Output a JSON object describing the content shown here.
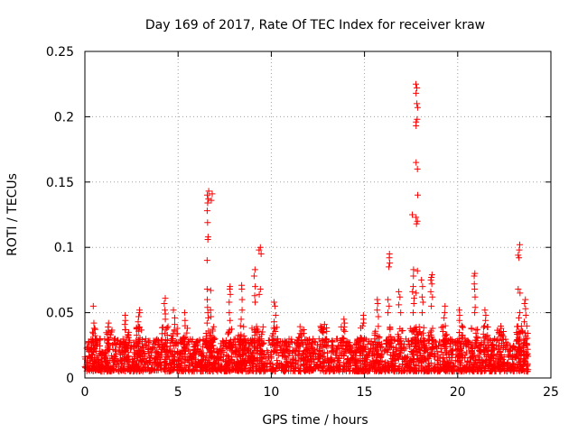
{
  "chart_data": {
    "type": "scatter",
    "title": "Day 169 of 2017, Rate Of TEC Index for receiver kraw",
    "xlabel": "GPS time / hours",
    "ylabel": "ROTI / TECUs",
    "xlim": [
      0,
      25
    ],
    "ylim": [
      0,
      0.25
    ],
    "xticks": [
      0,
      5,
      10,
      15,
      20,
      25
    ],
    "yticks": [
      0,
      0.05,
      0.1,
      0.15,
      0.2,
      0.25
    ],
    "xtick_labels": [
      "0",
      "5",
      "10",
      "15",
      "20",
      "25"
    ],
    "ytick_labels": [
      "0",
      "0.05",
      "0.1",
      "0.15",
      "0.2",
      "0.25"
    ],
    "grid": true,
    "marker": "+",
    "color": "#ff0000",
    "baseline_band": {
      "x_range": [
        0,
        23.8
      ],
      "y_range": [
        0.005,
        0.03
      ]
    },
    "spikes": [
      {
        "x": 0.5,
        "y": [
          0.055,
          0.042,
          0.038,
          0.034
        ]
      },
      {
        "x": 1.3,
        "y": [
          0.042,
          0.039,
          0.036,
          0.033
        ]
      },
      {
        "x": 2.2,
        "y": [
          0.048,
          0.044,
          0.041,
          0.037
        ]
      },
      {
        "x": 2.9,
        "y": [
          0.052,
          0.05,
          0.047,
          0.043,
          0.039
        ]
      },
      {
        "x": 4.3,
        "y": [
          0.061,
          0.057,
          0.052,
          0.049,
          0.045
        ]
      },
      {
        "x": 4.8,
        "y": [
          0.052,
          0.046,
          0.041
        ]
      },
      {
        "x": 5.4,
        "y": [
          0.05,
          0.044,
          0.04
        ]
      },
      {
        "x": 6.6,
        "y": [
          0.143,
          0.14,
          0.137,
          0.134,
          0.128,
          0.119,
          0.108,
          0.106,
          0.09,
          0.068,
          0.06,
          0.054,
          0.05,
          0.046,
          0.042
        ]
      },
      {
        "x": 6.8,
        "y": [
          0.141,
          0.136,
          0.067,
          0.052,
          0.047
        ]
      },
      {
        "x": 7.8,
        "y": [
          0.07,
          0.068,
          0.064,
          0.058,
          0.05,
          0.044
        ]
      },
      {
        "x": 8.4,
        "y": [
          0.071,
          0.068,
          0.06,
          0.052,
          0.045,
          0.04
        ]
      },
      {
        "x": 9.1,
        "y": [
          0.083,
          0.078,
          0.07,
          0.063,
          0.058,
          0.035
        ]
      },
      {
        "x": 9.4,
        "y": [
          0.1,
          0.098,
          0.095,
          0.068,
          0.064
        ]
      },
      {
        "x": 10.2,
        "y": [
          0.058,
          0.055,
          0.048,
          0.043
        ]
      },
      {
        "x": 11.6,
        "y": [
          0.036,
          0.034,
          0.032
        ]
      },
      {
        "x": 12.8,
        "y": [
          0.041,
          0.038,
          0.035
        ]
      },
      {
        "x": 13.9,
        "y": [
          0.045,
          0.042,
          0.039
        ]
      },
      {
        "x": 14.9,
        "y": [
          0.048,
          0.045,
          0.042
        ]
      },
      {
        "x": 15.7,
        "y": [
          0.06,
          0.057,
          0.052,
          0.047
        ]
      },
      {
        "x": 16.3,
        "y": [
          0.095,
          0.092,
          0.088,
          0.085,
          0.06,
          0.055,
          0.05
        ]
      },
      {
        "x": 16.9,
        "y": [
          0.066,
          0.062,
          0.056,
          0.05
        ]
      },
      {
        "x": 17.6,
        "y": [
          0.125,
          0.083,
          0.078,
          0.07,
          0.066,
          0.061,
          0.057,
          0.05
        ]
      },
      {
        "x": 17.8,
        "y": [
          0.225,
          0.222,
          0.218,
          0.21,
          0.207,
          0.198,
          0.196,
          0.193,
          0.165,
          0.16,
          0.14,
          0.123,
          0.12,
          0.118,
          0.082,
          0.065
        ]
      },
      {
        "x": 18.1,
        "y": [
          0.075,
          0.07,
          0.062,
          0.058,
          0.05
        ]
      },
      {
        "x": 18.6,
        "y": [
          0.079,
          0.077,
          0.075,
          0.072,
          0.066,
          0.062,
          0.055
        ]
      },
      {
        "x": 19.3,
        "y": [
          0.055,
          0.05,
          0.046,
          0.04
        ]
      },
      {
        "x": 20.1,
        "y": [
          0.052,
          0.048,
          0.044
        ]
      },
      {
        "x": 20.9,
        "y": [
          0.08,
          0.078,
          0.072,
          0.068,
          0.062,
          0.054,
          0.05
        ]
      },
      {
        "x": 21.5,
        "y": [
          0.052,
          0.048,
          0.044
        ]
      },
      {
        "x": 22.3,
        "y": [
          0.038,
          0.035,
          0.032
        ]
      },
      {
        "x": 23.3,
        "y": [
          0.102,
          0.098,
          0.094,
          0.092,
          0.068,
          0.065,
          0.05,
          0.046
        ]
      },
      {
        "x": 23.6,
        "y": [
          0.06,
          0.057,
          0.053,
          0.048,
          0.043
        ]
      }
    ]
  }
}
